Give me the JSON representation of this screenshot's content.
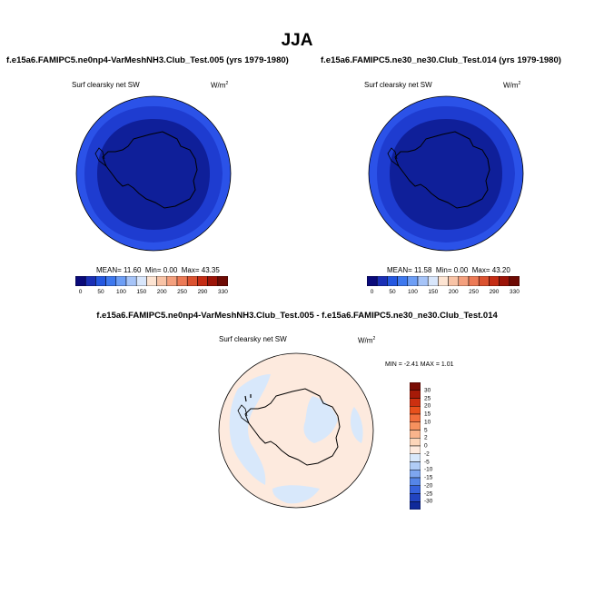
{
  "title": "JJA",
  "panels": [
    {
      "title": "f.e15a6.FAMIPC5.ne0np4-VarMeshNH3.Club_Test.005 (yrs 1979-1980)",
      "variable": "Surf clearsky net SW",
      "units": "W/m",
      "units_sup": "2",
      "stats": {
        "mean": "11.60",
        "min": "0.00",
        "max": "43.35"
      },
      "stats_labels": {
        "mean": "MEAN=",
        "min": "Min=",
        "max": "Max="
      }
    },
    {
      "title": "f.e15a6.FAMIPC5.ne30_ne30.Club_Test.014 (yrs 1979-1980)",
      "variable": "Surf clearsky net SW",
      "units": "W/m",
      "units_sup": "2",
      "stats": {
        "mean": "11.58",
        "min": "0.00",
        "max": "43.20"
      },
      "stats_labels": {
        "mean": "MEAN=",
        "min": "Min=",
        "max": "Max="
      }
    }
  ],
  "diff_panel": {
    "title": "f.e15a6.FAMIPC5.ne0np4-VarMeshNH3.Club_Test.005 - f.e15a6.FAMIPC5.ne30_ne30.Club_Test.014",
    "variable": "Surf clearsky net SW",
    "units": "W/m",
    "units_sup": "2",
    "stats": {
      "min": "-2.41",
      "max": "1.01"
    },
    "stats_labels": {
      "min": "MIN =",
      "max": "MAX ="
    }
  },
  "colorbar_abs": {
    "labels": [
      "0",
      "50",
      "100",
      "150",
      "200",
      "250",
      "290",
      "330"
    ],
    "colors": [
      "#0a0a7a",
      "#1a2fb5",
      "#2457e0",
      "#3e78ee",
      "#6d9ef5",
      "#a6c4f8",
      "#d8e6fb",
      "#fde4d2",
      "#f8c3a6",
      "#f4a07e",
      "#ec7a56",
      "#db5230",
      "#c42c14",
      "#9c1408",
      "#6e0a04"
    ]
  },
  "colorbar_diff": {
    "labels": [
      "30",
      "25",
      "20",
      "15",
      "10",
      "5",
      "2",
      "0",
      "-2",
      "-5",
      "-10",
      "-15",
      "-20",
      "-25",
      "-30"
    ],
    "colors": [
      "#7a0c04",
      "#a61a08",
      "#cc3010",
      "#e8501c",
      "#f26e3c",
      "#f6915e",
      "#f9b48c",
      "#fcd6ba",
      "#fdeade",
      "#d8e8fb",
      "#b0ccf6",
      "#7ea6f0",
      "#5585e8",
      "#3662dc",
      "#2244c0",
      "#102a9a"
    ]
  },
  "map_colors": {
    "ocean_dark": "#0f1f99",
    "ocean_mid": "#1e3cd0",
    "ocean_ring": "#2b52e8",
    "diff_pos": "#fdeade",
    "diff_neg": "#d8e8fb"
  }
}
